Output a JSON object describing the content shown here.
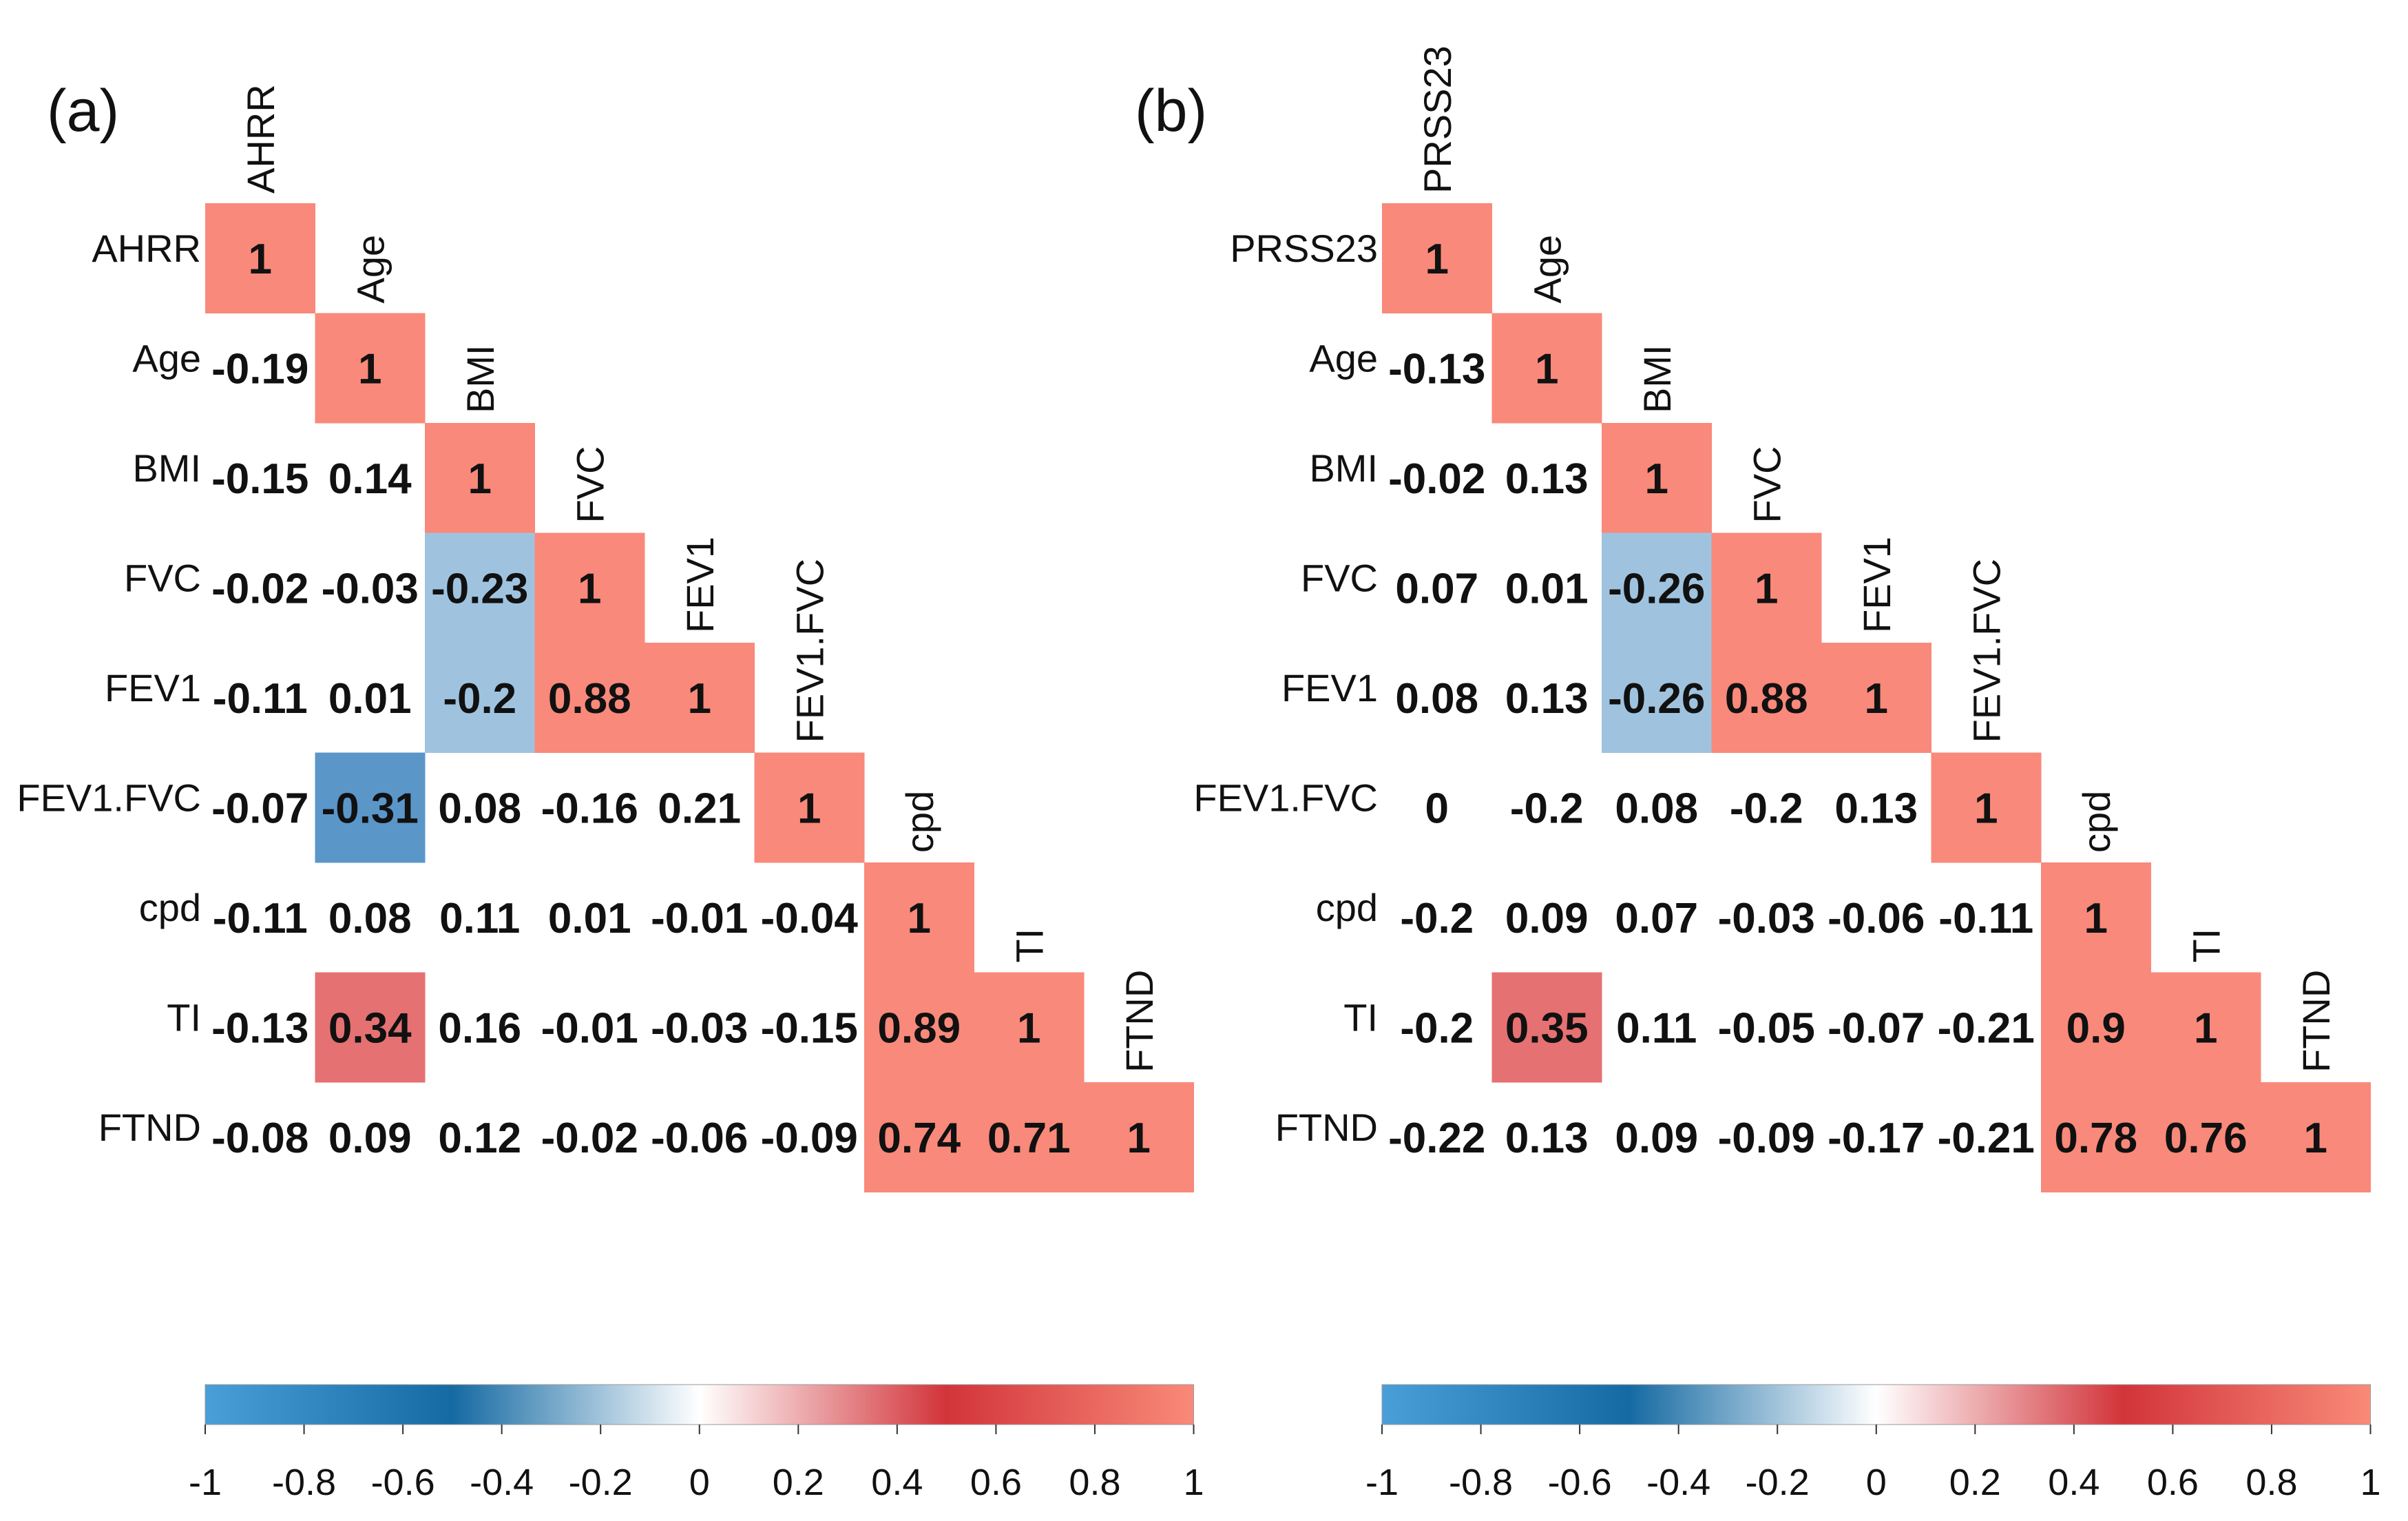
{
  "chart_data": [
    {
      "type": "heatmap",
      "panel_label": "(a)",
      "variables": [
        "AHRR",
        "Age",
        "BMI",
        "FVC",
        "FEV1",
        "FEV1.FVC",
        "cpd",
        "TI",
        "FTND"
      ],
      "matrix_lower": [
        [
          1
        ],
        [
          -0.19,
          1
        ],
        [
          -0.15,
          0.14,
          1
        ],
        [
          -0.02,
          -0.03,
          -0.23,
          1
        ],
        [
          -0.11,
          0.01,
          -0.2,
          0.88,
          1
        ],
        [
          -0.07,
          -0.31,
          0.08,
          -0.16,
          0.21,
          1
        ],
        [
          -0.11,
          0.08,
          0.11,
          0.01,
          -0.01,
          -0.04,
          1
        ],
        [
          -0.13,
          0.34,
          0.16,
          -0.01,
          -0.03,
          -0.15,
          0.89,
          1
        ],
        [
          -0.08,
          0.09,
          0.12,
          -0.02,
          -0.06,
          -0.09,
          0.74,
          0.71,
          1
        ]
      ],
      "colorbar": {
        "range": [
          -1,
          1
        ],
        "ticks": [
          "-1",
          "-0.8",
          "-0.6",
          "-0.4",
          "-0.2",
          "0",
          "0.2",
          "0.4",
          "0.6",
          "0.8",
          "1"
        ]
      }
    },
    {
      "type": "heatmap",
      "panel_label": "(b)",
      "variables": [
        "PRSS23",
        "Age",
        "BMI",
        "FVC",
        "FEV1",
        "FEV1.FVC",
        "cpd",
        "TI",
        "FTND"
      ],
      "matrix_lower": [
        [
          1
        ],
        [
          -0.13,
          1
        ],
        [
          -0.02,
          0.13,
          1
        ],
        [
          0.07,
          0.01,
          -0.26,
          1
        ],
        [
          0.08,
          0.13,
          -0.26,
          0.88,
          1
        ],
        [
          0,
          -0.2,
          0.08,
          -0.2,
          0.13,
          1
        ],
        [
          -0.2,
          0.09,
          0.07,
          -0.03,
          -0.06,
          -0.11,
          1
        ],
        [
          -0.2,
          0.35,
          0.11,
          -0.05,
          -0.07,
          -0.21,
          0.9,
          1
        ],
        [
          -0.22,
          0.13,
          0.09,
          -0.09,
          -0.17,
          -0.21,
          0.78,
          0.76,
          1
        ]
      ],
      "colorbar": {
        "range": [
          -1,
          1
        ],
        "ticks": [
          "-1",
          "-0.8",
          "-0.6",
          "-0.4",
          "-0.2",
          "0",
          "0.2",
          "0.4",
          "0.6",
          "0.8",
          "1"
        ]
      }
    }
  ],
  "palette": {
    "gradient_stops": [
      "#4a9fd8",
      "#156aa3",
      "#ffffff",
      "#d2343a",
      "#f98a78"
    ],
    "significant_negative_light": "#9fc3df",
    "significant_negative_dark": "#5b96c9",
    "significant_positive": "#e67172",
    "diagonal_and_strong_positive": "#f9897a",
    "text": "#111111"
  }
}
